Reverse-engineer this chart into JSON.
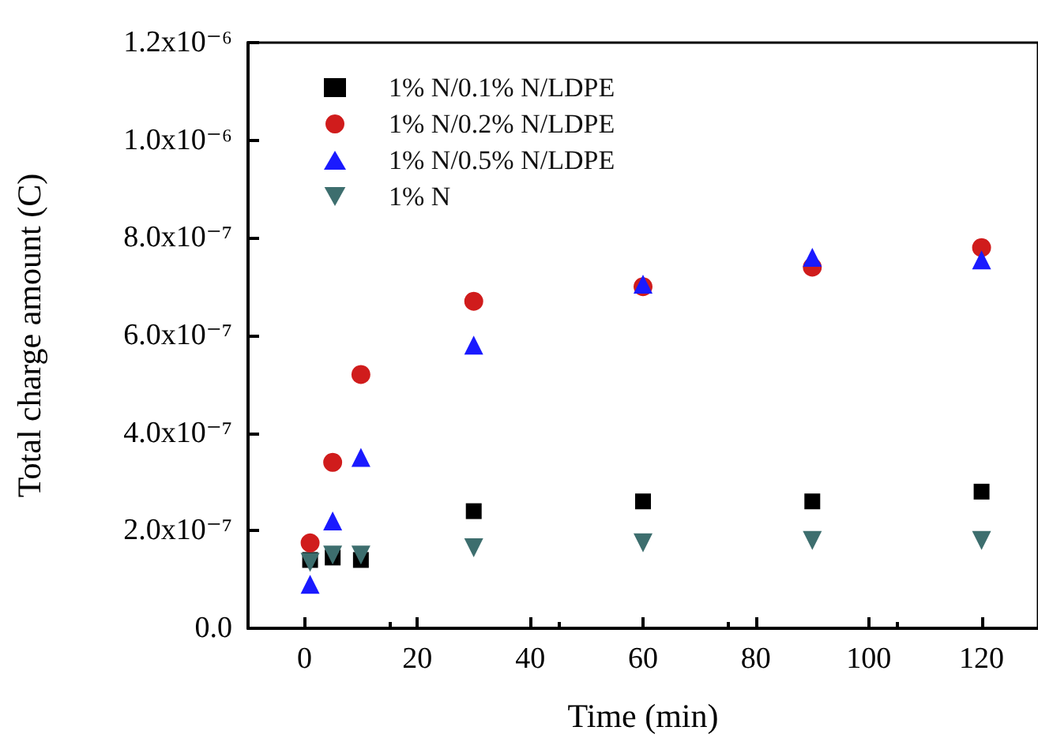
{
  "chart_data": {
    "type": "scatter",
    "xlabel": "Time (min)",
    "ylabel": "Total charge amount (C)",
    "x": [
      1,
      5,
      10,
      30,
      60,
      90,
      120
    ],
    "series": [
      {
        "name": "1% N/0.1% N/LDPE",
        "color": "#000000",
        "marker": "square",
        "values": [
          1.4e-07,
          1.45e-07,
          1.4e-07,
          2.4e-07,
          2.6e-07,
          2.6e-07,
          2.8e-07
        ]
      },
      {
        "name": "1% N/0.2% N/LDPE",
        "color": "#d01c1c",
        "marker": "circle",
        "values": [
          1.75e-07,
          3.4e-07,
          5.2e-07,
          6.7e-07,
          7e-07,
          7.4e-07,
          7.8e-07
        ]
      },
      {
        "name": "1% N/0.5% N/LDPE",
        "color": "#1a1aff",
        "marker": "triangle",
        "values": [
          9e-08,
          2.2e-07,
          3.5e-07,
          5.8e-07,
          7.05e-07,
          7.6e-07,
          7.55e-07
        ]
      },
      {
        "name": "1% N",
        "color": "#3d6e6e",
        "marker": "triangle-down",
        "values": [
          1.35e-07,
          1.5e-07,
          1.5e-07,
          1.65e-07,
          1.75e-07,
          1.8e-07,
          1.8e-07
        ]
      }
    ],
    "xlim": [
      -10,
      130
    ],
    "xticks": [
      0,
      20,
      40,
      60,
      80,
      100,
      120
    ],
    "ylim": [
      0,
      1.2e-06
    ],
    "yticks": [
      {
        "value": 0,
        "label": "0.0"
      },
      {
        "value": 2e-07,
        "label": "2.0x10⁻⁷"
      },
      {
        "value": 4e-07,
        "label": "4.0x10⁻⁷"
      },
      {
        "value": 6e-07,
        "label": "6.0x10⁻⁷"
      },
      {
        "value": 8e-07,
        "label": "8.0x10⁻⁷"
      },
      {
        "value": 1e-06,
        "label": "1.0x10⁻⁶"
      },
      {
        "value": 1.2e-06,
        "label": "1.2x10⁻⁶"
      }
    ],
    "grid": false,
    "legend": "top left"
  }
}
